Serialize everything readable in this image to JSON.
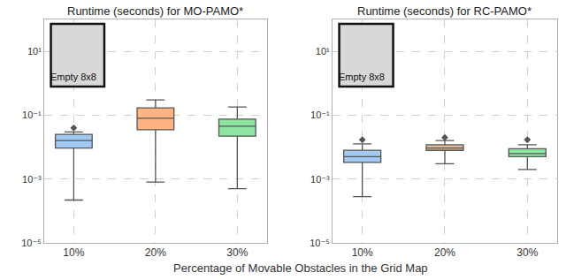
{
  "chart_data": [
    {
      "type": "box",
      "title": "Runtime (seconds) for MO-PAMO*",
      "categories": [
        "10%",
        "20%",
        "30%"
      ],
      "boxes": [
        {
          "lower": 0.00022,
          "q1": 0.0093,
          "median": 0.016,
          "q3": 0.025,
          "upper": 0.03,
          "outliers": [
            0.04
          ]
        },
        {
          "lower": 0.0008,
          "q1": 0.035,
          "median": 0.08,
          "q3": 0.17,
          "upper": 0.3,
          "outliers": []
        },
        {
          "lower": 0.0005,
          "q1": 0.022,
          "median": 0.045,
          "q3": 0.075,
          "upper": 0.18,
          "outliers": []
        }
      ],
      "colors": [
        "#a1c9f4",
        "#ffb482",
        "#8de5a1"
      ],
      "log": "y",
      "grid": true,
      "ylim": [
        1e-05,
        100
      ],
      "yticks": [
        {
          "value": 1e-05,
          "label": "10⁻⁵"
        },
        {
          "value": 0.001,
          "label": "10⁻³"
        },
        {
          "value": 0.1,
          "label": "10⁻¹"
        },
        {
          "value": 10,
          "label": "10¹"
        }
      ],
      "annotations": [
        "Empty 8x8"
      ]
    },
    {
      "type": "box",
      "title": "Runtime (seconds) for RC-PAMO*",
      "categories": [
        "10%",
        "20%",
        "30%"
      ],
      "boxes": [
        {
          "lower": 0.00028,
          "q1": 0.0033,
          "median": 0.005,
          "q3": 0.008,
          "upper": 0.0126,
          "outliers": [
            0.017
          ]
        },
        {
          "lower": 0.003,
          "q1": 0.0079,
          "median": 0.0094,
          "q3": 0.0118,
          "upper": 0.016,
          "outliers": [
            0.02
          ]
        },
        {
          "lower": 0.002,
          "q1": 0.005,
          "median": 0.0063,
          "q3": 0.0089,
          "upper": 0.0118,
          "outliers": [
            0.017
          ]
        }
      ],
      "colors": [
        "#a1c9f4",
        "#debb9b",
        "#8de5a1"
      ],
      "log": "y",
      "grid": true,
      "ylim": [
        1e-05,
        100
      ],
      "yticks": [
        {
          "value": 1e-05,
          "label": "10⁻⁵"
        },
        {
          "value": 0.001,
          "label": "10⁻³"
        },
        {
          "value": 0.1,
          "label": "10⁻¹"
        },
        {
          "value": 10,
          "label": "10¹"
        }
      ],
      "annotations": [
        "Empty 8x8"
      ]
    }
  ],
  "xlabel": "Percentage of Movable Obstacles in the Grid Map"
}
